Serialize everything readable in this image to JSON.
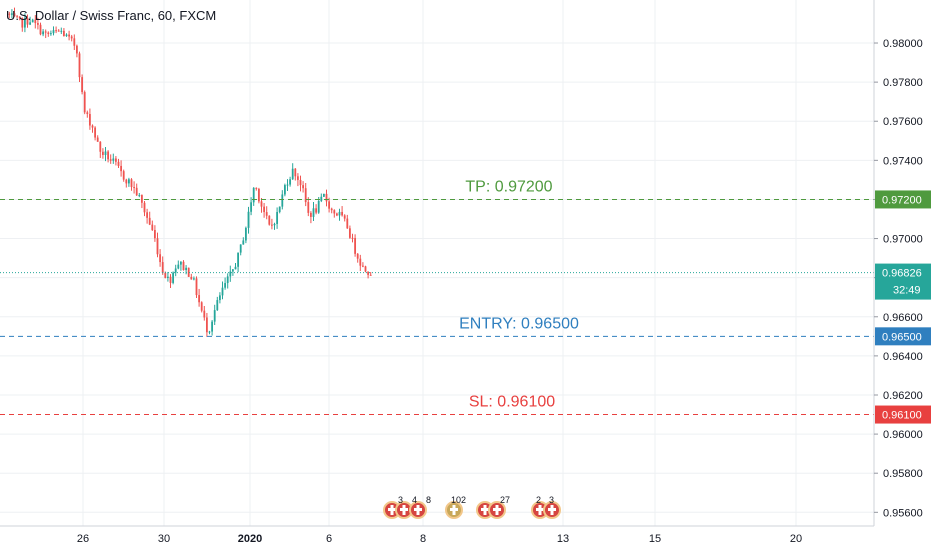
{
  "header": {
    "title": "U.S. Dollar / Swiss Franc, 60, FXCM"
  },
  "colors": {
    "up": "#26a69a",
    "down": "#ef5350",
    "tp": "#4f9a3e",
    "entry": "#2f7fbf",
    "sl": "#e8403f",
    "current": "#26a69a"
  },
  "chart_data": {
    "type": "candlestick",
    "title": "U.S. Dollar / Swiss Franc, 60, FXCM",
    "x_ticks": [
      "26",
      "30",
      "2020",
      "6",
      "8",
      "13",
      "15",
      "20"
    ],
    "y_ticks": [
      "0.98000",
      "0.97800",
      "0.97600",
      "0.97400",
      "0.97200",
      "0.97000",
      "0.96800",
      "0.96600",
      "0.96400",
      "0.96200",
      "0.96000",
      "0.95800",
      "0.95600"
    ],
    "ylim": [
      0.9553,
      0.9822
    ],
    "levels": [
      {
        "name": "TP",
        "label": "TP: 0.97200",
        "value": 0.972,
        "badge": "0.97200",
        "color": "#4f9a3e"
      },
      {
        "name": "ENTRY",
        "label": "ENTRY: 0.96500",
        "value": 0.965,
        "badge": "0.96500",
        "color": "#2f7fbf"
      },
      {
        "name": "SL",
        "label": "SL: 0.96100",
        "value": 0.961,
        "badge": "0.96100",
        "color": "#e8403f"
      }
    ],
    "current_price": {
      "value": 0.96826,
      "badge": "0.96826",
      "countdown": "32:49"
    },
    "price_path": [
      0.9815,
      0.9812,
      0.981,
      0.9812,
      0.9808,
      0.9804,
      0.9805,
      0.9806,
      0.9802,
      0.9798,
      0.9765,
      0.9758,
      0.9745,
      0.9742,
      0.9738,
      0.9732,
      0.9728,
      0.9722,
      0.9712,
      0.9702,
      0.9685,
      0.9678,
      0.9688,
      0.9685,
      0.968,
      0.9665,
      0.9652,
      0.9665,
      0.9675,
      0.9682,
      0.9692,
      0.9708,
      0.9728,
      0.9716,
      0.9705,
      0.9713,
      0.9728,
      0.9735,
      0.9728,
      0.9712,
      0.9715,
      0.9722,
      0.9714,
      0.9712,
      0.9706,
      0.9694,
      0.9685,
      0.9683
    ],
    "events": [
      "3",
      "4",
      "8",
      "102",
      "27",
      "2",
      "3"
    ]
  }
}
